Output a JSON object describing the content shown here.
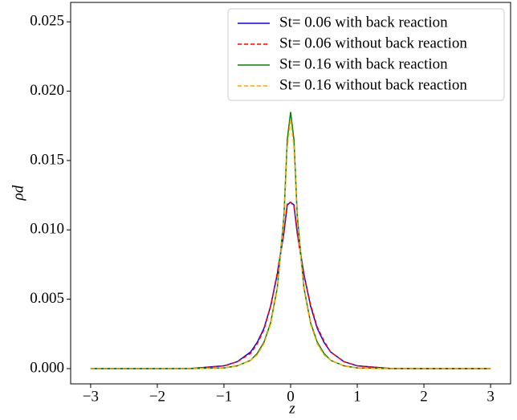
{
  "chart_data": {
    "type": "line",
    "xlabel": "z",
    "ylabel": "ρd",
    "x": [
      -3,
      -2,
      -1.5,
      -1,
      -0.8,
      -0.6,
      -0.5,
      -0.4,
      -0.3,
      -0.2,
      -0.1,
      -0.05,
      0,
      0.05,
      0.1,
      0.2,
      0.3,
      0.4,
      0.5,
      0.6,
      0.8,
      1,
      1.5,
      2,
      3
    ],
    "series": [
      {
        "name": "St= 0.06 with back reaction",
        "color": "#0000ff",
        "dash": false,
        "values": [
          0,
          0,
          1e-05,
          0.0002,
          0.0005,
          0.0012,
          0.0019,
          0.0029,
          0.0045,
          0.0068,
          0.0098,
          0.0118,
          0.012,
          0.0118,
          0.0098,
          0.0068,
          0.0045,
          0.0029,
          0.0019,
          0.0012,
          0.0005,
          0.0002,
          1e-05,
          0,
          0
        ]
      },
      {
        "name": "St= 0.06 without back reaction",
        "color": "#ff0000",
        "dash": true,
        "values": [
          0,
          0,
          1e-05,
          0.00019,
          0.0005,
          0.0011,
          0.0018,
          0.0028,
          0.0045,
          0.0069,
          0.0099,
          0.0119,
          0.012,
          0.0117,
          0.0097,
          0.0067,
          0.0046,
          0.003,
          0.002,
          0.0012,
          0.0005,
          0.0002,
          1e-05,
          0,
          0
        ]
      },
      {
        "name": "St= 0.16 with back reaction",
        "color": "#008000",
        "dash": false,
        "values": [
          0,
          0,
          0,
          5e-05,
          0.0002,
          0.0006,
          0.0011,
          0.0019,
          0.0033,
          0.0058,
          0.011,
          0.0165,
          0.0185,
          0.0165,
          0.011,
          0.0058,
          0.0033,
          0.0019,
          0.0011,
          0.0006,
          0.0002,
          5e-05,
          0,
          0,
          0
        ]
      },
      {
        "name": "St= 0.16 without back reaction",
        "color": "#ffa500",
        "dash": true,
        "values": [
          0,
          0,
          0,
          5e-05,
          0.0002,
          0.0006,
          0.001,
          0.0018,
          0.0032,
          0.0057,
          0.0108,
          0.016,
          0.018,
          0.016,
          0.0107,
          0.0057,
          0.0032,
          0.0018,
          0.001,
          0.0006,
          0.0002,
          5e-05,
          0,
          0,
          0
        ]
      }
    ],
    "xlim": [
      -3.3,
      3.3
    ],
    "ylim": [
      -0.0011,
      0.0264
    ],
    "xticks": [
      {
        "value": -3,
        "label": "−3"
      },
      {
        "value": -2,
        "label": "−2"
      },
      {
        "value": -1,
        "label": "−1"
      },
      0,
      1,
      2,
      3
    ],
    "yticks": [
      {
        "value": 0,
        "label": "0.000"
      },
      {
        "value": 0.005,
        "label": "0.005"
      },
      {
        "value": 0.01,
        "label": "0.010"
      },
      {
        "value": 0.015,
        "label": "0.015"
      },
      {
        "value": 0.02,
        "label": "0.020"
      },
      {
        "value": 0.025,
        "label": "0.025"
      }
    ],
    "legend": "upper right"
  }
}
